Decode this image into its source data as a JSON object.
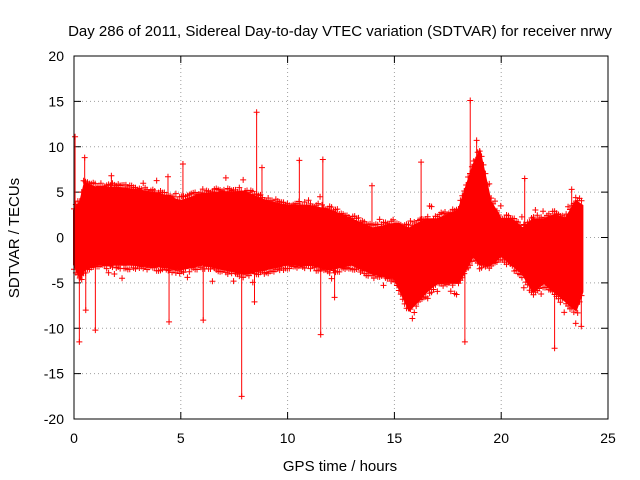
{
  "chart_data": {
    "type": "scatter",
    "title": "Day 286 of 2011, Sidereal Day-to-day VTEC variation (SDTVAR) for receiver nrwy",
    "xlabel": "GPS time / hours",
    "ylabel": "SDTVAR / TECUs",
    "xlim": [
      0,
      25
    ],
    "ylim": [
      -20,
      20
    ],
    "xticks": [
      0,
      5,
      10,
      15,
      20,
      25
    ],
    "yticks": [
      -20,
      -15,
      -10,
      -5,
      0,
      5,
      10,
      15,
      20
    ],
    "grid": true,
    "grid_style": "dotted",
    "marker": "+",
    "color": "#ff0000",
    "series": [
      {
        "name": "SDTVAR",
        "envelope": [
          {
            "x": 0.0,
            "lo": -3.0,
            "hi": 3.0
          },
          {
            "x": 0.3,
            "lo": -4.5,
            "hi": 4.0
          },
          {
            "x": 0.5,
            "lo": -3.5,
            "hi": 6.0
          },
          {
            "x": 1.0,
            "lo": -3.0,
            "hi": 5.5
          },
          {
            "x": 2.0,
            "lo": -3.0,
            "hi": 5.5
          },
          {
            "x": 3.0,
            "lo": -3.0,
            "hi": 5.2
          },
          {
            "x": 4.0,
            "lo": -3.2,
            "hi": 4.8
          },
          {
            "x": 5.0,
            "lo": -3.5,
            "hi": 4.0
          },
          {
            "x": 6.0,
            "lo": -3.0,
            "hi": 4.8
          },
          {
            "x": 7.0,
            "lo": -3.5,
            "hi": 5.0
          },
          {
            "x": 8.0,
            "lo": -4.0,
            "hi": 5.0
          },
          {
            "x": 9.0,
            "lo": -3.5,
            "hi": 4.0
          },
          {
            "x": 10.0,
            "lo": -3.0,
            "hi": 3.5
          },
          {
            "x": 11.0,
            "lo": -3.0,
            "hi": 3.5
          },
          {
            "x": 12.0,
            "lo": -3.5,
            "hi": 3.0
          },
          {
            "x": 13.0,
            "lo": -3.0,
            "hi": 2.0
          },
          {
            "x": 14.0,
            "lo": -4.0,
            "hi": 1.0
          },
          {
            "x": 15.0,
            "lo": -4.5,
            "hi": 1.5
          },
          {
            "x": 15.7,
            "lo": -8.0,
            "hi": 1.0
          },
          {
            "x": 16.5,
            "lo": -6.0,
            "hi": 2.0
          },
          {
            "x": 17.0,
            "lo": -5.0,
            "hi": 2.0
          },
          {
            "x": 18.0,
            "lo": -5.0,
            "hi": 3.0
          },
          {
            "x": 18.7,
            "lo": -2.0,
            "hi": 8.0
          },
          {
            "x": 19.0,
            "lo": -3.0,
            "hi": 9.5
          },
          {
            "x": 19.5,
            "lo": -3.0,
            "hi": 4.0
          },
          {
            "x": 20.0,
            "lo": -2.0,
            "hi": 2.0
          },
          {
            "x": 20.5,
            "lo": -3.0,
            "hi": 2.0
          },
          {
            "x": 21.0,
            "lo": -4.0,
            "hi": 1.0
          },
          {
            "x": 21.5,
            "lo": -6.0,
            "hi": 2.0
          },
          {
            "x": 22.0,
            "lo": -5.0,
            "hi": 2.0
          },
          {
            "x": 22.5,
            "lo": -6.0,
            "hi": 2.5
          },
          {
            "x": 23.0,
            "lo": -7.0,
            "hi": 2.0
          },
          {
            "x": 23.5,
            "lo": -8.0,
            "hi": 4.0
          },
          {
            "x": 23.8,
            "lo": -6.0,
            "hi": 3.5
          }
        ],
        "outliers": [
          {
            "x": 0.05,
            "y": 11.1
          },
          {
            "x": 0.25,
            "y": -11.5
          },
          {
            "x": 0.5,
            "y": 8.8
          },
          {
            "x": 0.55,
            "y": -8.0
          },
          {
            "x": 1.0,
            "y": -10.2
          },
          {
            "x": 1.75,
            "y": 6.8
          },
          {
            "x": 4.4,
            "y": 6.7
          },
          {
            "x": 4.45,
            "y": -9.3
          },
          {
            "x": 5.1,
            "y": 8.1
          },
          {
            "x": 6.05,
            "y": -9.1
          },
          {
            "x": 7.85,
            "y": -17.5
          },
          {
            "x": 8.45,
            "y": -7.1
          },
          {
            "x": 8.55,
            "y": 13.8
          },
          {
            "x": 8.8,
            "y": 7.7
          },
          {
            "x": 10.55,
            "y": 8.5
          },
          {
            "x": 11.55,
            "y": -10.7
          },
          {
            "x": 11.65,
            "y": 8.6
          },
          {
            "x": 12.2,
            "y": -6.6
          },
          {
            "x": 13.95,
            "y": 5.7
          },
          {
            "x": 16.25,
            "y": 8.3
          },
          {
            "x": 18.3,
            "y": -11.5
          },
          {
            "x": 18.55,
            "y": 15.1
          },
          {
            "x": 18.85,
            "y": 10.7
          },
          {
            "x": 21.1,
            "y": 6.5
          },
          {
            "x": 22.5,
            "y": -12.2
          },
          {
            "x": 23.3,
            "y": 5.3
          },
          {
            "x": 23.75,
            "y": -9.8
          }
        ]
      }
    ]
  }
}
